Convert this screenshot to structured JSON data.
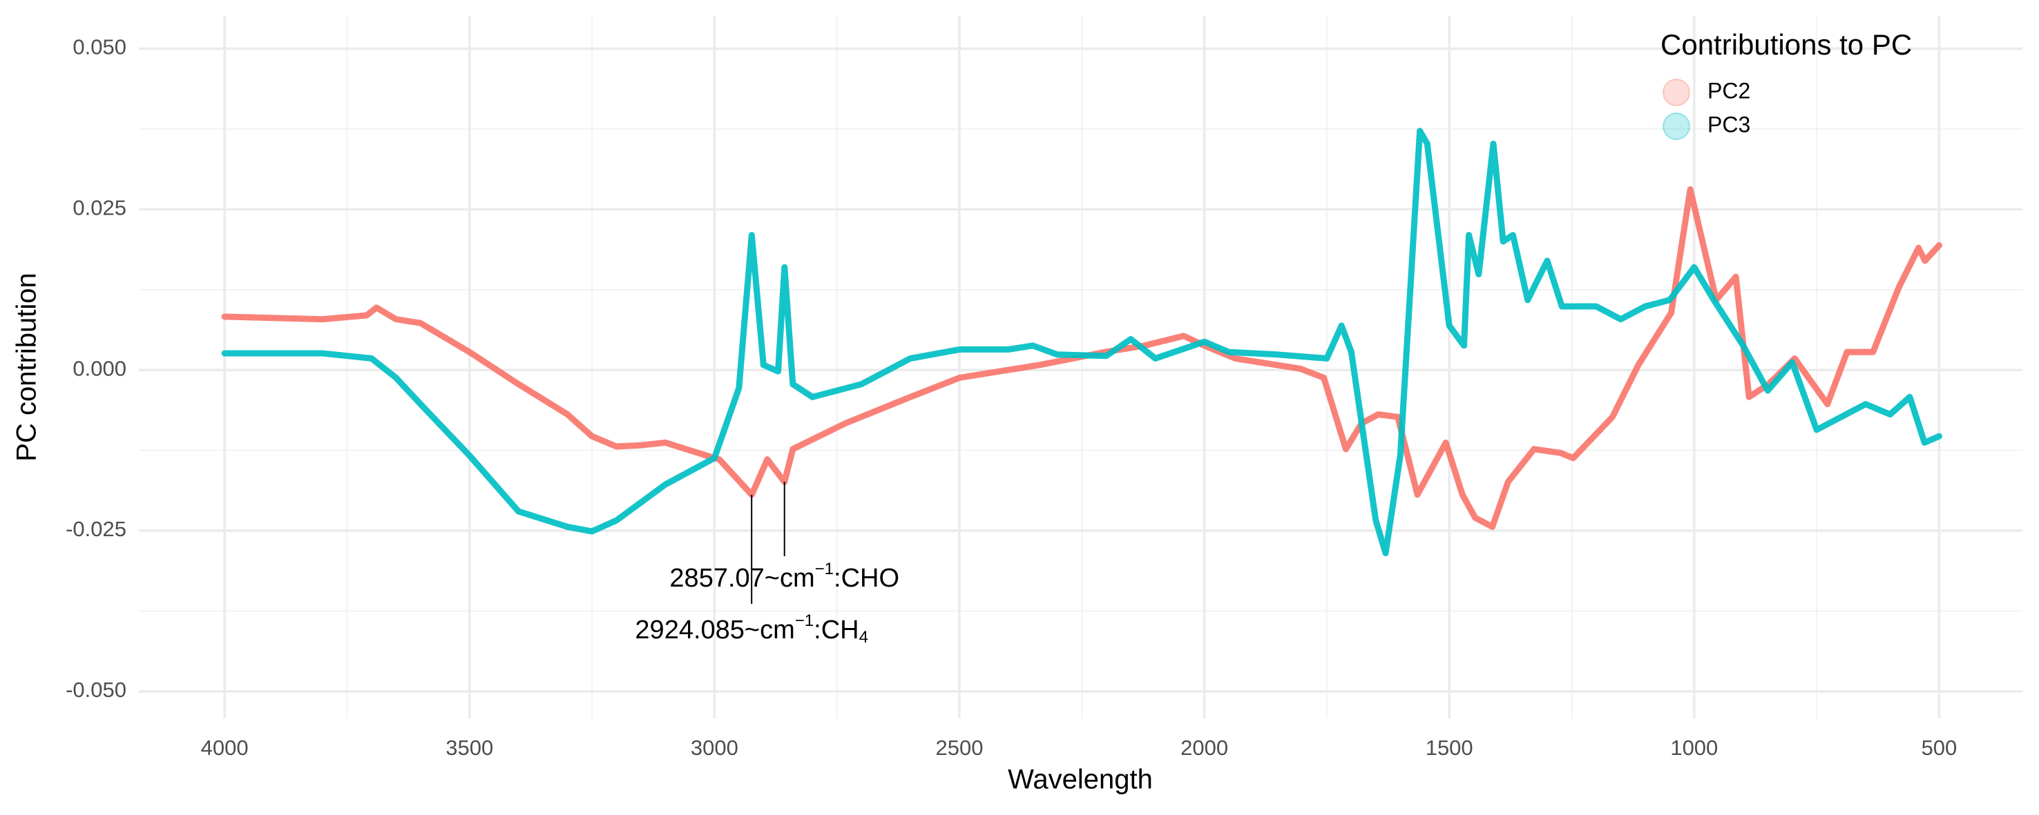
{
  "chart_data": {
    "type": "line",
    "x_label": "Wavelength",
    "y_label": "PC contribution",
    "xlim": [
      4175,
      330
    ],
    "ylim": [
      -0.0542,
      0.0551
    ],
    "xticks": [
      4000,
      3500,
      3000,
      2500,
      2000,
      1500,
      1000,
      500
    ],
    "x_minor_ticks": [
      3750,
      3250,
      2750,
      2250,
      1750,
      1250,
      750
    ],
    "yticks": [
      {
        "value": 0.05,
        "label": "0.050"
      },
      {
        "value": 0.025,
        "label": "0.025"
      },
      {
        "value": 0,
        "label": "0.000"
      },
      {
        "value": -0.025,
        "label": "-0.025"
      },
      {
        "value": -0.05,
        "label": "-0.050"
      }
    ],
    "y_minor_ticks": [
      0.0375,
      0.0125,
      -0.0125,
      -0.0375
    ],
    "grid": true,
    "legend_title": "Contributions to PC",
    "legend_position": "top-right",
    "series": [
      {
        "name": "PC2",
        "color": "#F8766D",
        "x": [
          4000,
          3800,
          3710,
          3690,
          3650,
          3600,
          3500,
          3400,
          3300,
          3250,
          3200,
          3150,
          3100,
          3000,
          2990,
          2924,
          2892,
          2857,
          2840,
          2733,
          2600,
          2500,
          2335,
          2202,
          2122,
          2042,
          2000,
          1937,
          1804,
          1756,
          1711,
          1679,
          1645,
          1605,
          1565,
          1507,
          1473,
          1447,
          1412,
          1380,
          1327,
          1273,
          1247,
          1167,
          1114,
          1047,
          1008,
          955,
          915,
          888,
          848,
          795,
          728,
          688,
          635,
          582,
          542,
          529,
          500
        ],
        "values": [
          0.0083,
          0.0079,
          0.0085,
          0.0097,
          0.0079,
          0.0073,
          0.0028,
          -0.0022,
          -0.0069,
          -0.0103,
          -0.0119,
          -0.0117,
          -0.0113,
          -0.0137,
          -0.0139,
          -0.0194,
          -0.0139,
          -0.0174,
          -0.0123,
          -0.0083,
          -0.0042,
          -0.0012,
          0.0008,
          0.0028,
          0.0038,
          0.0053,
          0.0038,
          0.0018,
          0.0002,
          -0.0012,
          -0.0123,
          -0.0083,
          -0.0069,
          -0.0073,
          -0.0194,
          -0.0113,
          -0.0194,
          -0.023,
          -0.0244,
          -0.0174,
          -0.0123,
          -0.0129,
          -0.0137,
          -0.0073,
          0.0008,
          0.0089,
          0.0281,
          0.0109,
          0.0145,
          -0.0042,
          -0.0022,
          0.0018,
          -0.0053,
          0.0028,
          0.0028,
          0.0129,
          0.019,
          0.017,
          0.0194
        ]
      },
      {
        "name": "PC3",
        "color": "#00BFC4",
        "x": [
          4000,
          3800,
          3700,
          3650,
          3600,
          3500,
          3400,
          3300,
          3250,
          3200,
          3100,
          3000,
          2950,
          2924,
          2900,
          2870,
          2857,
          2840,
          2800,
          2700,
          2600,
          2500,
          2400,
          2350,
          2300,
          2200,
          2150,
          2100,
          2000,
          1950,
          1850,
          1750,
          1720,
          1700,
          1650,
          1630,
          1600,
          1560,
          1545,
          1500,
          1470,
          1460,
          1440,
          1410,
          1390,
          1370,
          1340,
          1300,
          1270,
          1200,
          1150,
          1100,
          1050,
          1000,
          960,
          900,
          850,
          800,
          750,
          700,
          650,
          600,
          560,
          530,
          500
        ],
        "values": [
          0.0026,
          0.0026,
          0.0018,
          -0.0012,
          -0.0053,
          -0.0133,
          -0.022,
          -0.0244,
          -0.0251,
          -0.0234,
          -0.0178,
          -0.0137,
          -0.0028,
          0.021,
          0.0008,
          -0.0002,
          0.016,
          -0.0022,
          -0.0042,
          -0.0022,
          0.0018,
          0.0032,
          0.0032,
          0.0038,
          0.0024,
          0.0022,
          0.0048,
          0.0018,
          0.0044,
          0.0028,
          0.0024,
          0.0018,
          0.0069,
          0.0028,
          -0.0234,
          -0.0285,
          -0.0133,
          0.0372,
          0.0352,
          0.0069,
          0.0038,
          0.021,
          0.0149,
          0.0352,
          0.02,
          0.021,
          0.0109,
          0.017,
          0.0099,
          0.0099,
          0.0079,
          0.0099,
          0.0109,
          0.016,
          0.0109,
          0.0038,
          -0.0032,
          0.0012,
          -0.0093,
          -0.0073,
          -0.0053,
          -0.0069,
          -0.0042,
          -0.0113,
          -0.0103
        ]
      }
    ],
    "annotations": [
      {
        "x": 2857.07,
        "text": "2857.07~cm",
        "sup": "−1",
        "suffix": ":CHO"
      },
      {
        "x": 2924.085,
        "text": "2924.085~cm",
        "sup": "−1",
        "suffix": ":CH",
        "sub": "4"
      }
    ]
  }
}
